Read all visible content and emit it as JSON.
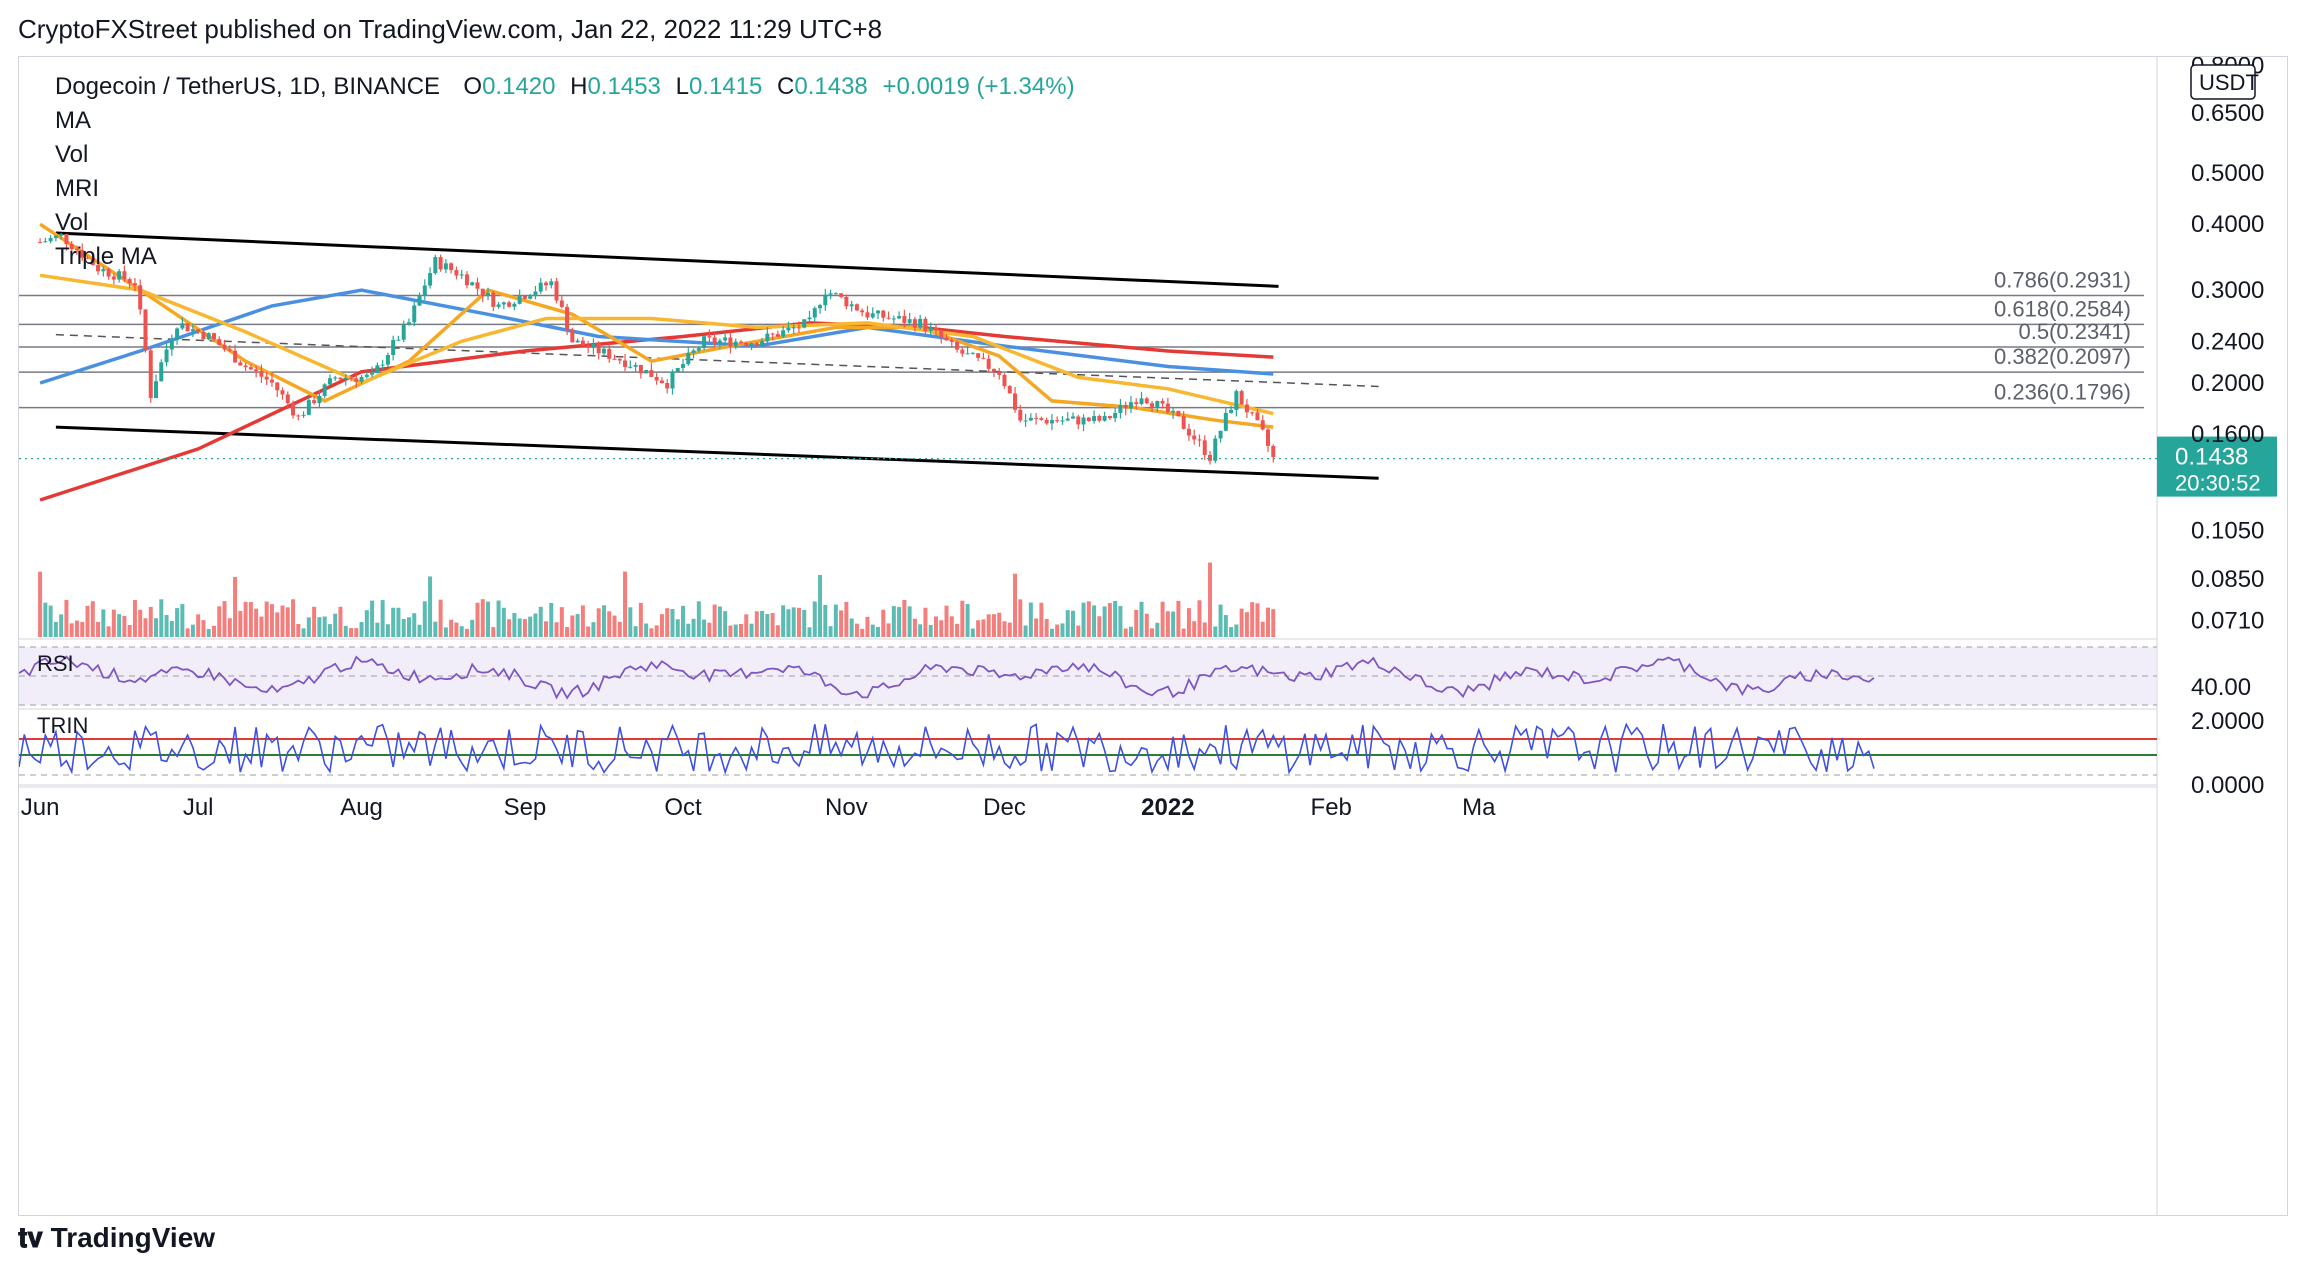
{
  "header": {
    "published": "CryptoFXStreet published on TradingView.com, Jan 22, 2022 11:29 UTC+8"
  },
  "legend": {
    "symbol": "Dogecoin / TetherUS, 1D, BINANCE",
    "o_label": "O",
    "o": "0.1420",
    "h_label": "H",
    "h": "0.1453",
    "l_label": "L",
    "l": "0.1415",
    "c_label": "C",
    "c": "0.1438",
    "change": "+0.0019 (+1.34%)",
    "indicators": [
      "MA",
      "Vol",
      "MRI",
      "Vol",
      "Triple MA"
    ]
  },
  "colors": {
    "up": "#26a69a",
    "down": "#ef5350",
    "ma_red": "#e53935",
    "ma_blue": "#4a90e2",
    "ma_orange": "#f5a623",
    "ma_yellow": "#f7b731",
    "channel": "#000000",
    "rsi": "#7e57c2",
    "trin": "#3f51e0"
  },
  "chart_data": {
    "type": "line",
    "main": {
      "currency": "USDT",
      "y_scale": "log",
      "y_ticks": [
        "0.8000",
        "0.6500",
        "0.5000",
        "0.4000",
        "0.3000",
        "0.2400",
        "0.2000",
        "0.1600",
        "0.1050",
        "0.0850",
        "0.0710"
      ],
      "y_tick_values": [
        0.8,
        0.65,
        0.5,
        0.4,
        0.3,
        0.24,
        0.2,
        0.16,
        0.105,
        0.085,
        0.071
      ],
      "last_price": "0.1438",
      "countdown": "20:30:52",
      "x_ticks": [
        "Jun",
        "Jul",
        "Aug",
        "Sep",
        "Oct",
        "Nov",
        "Dec",
        "2022",
        "Feb",
        "Ma"
      ],
      "x_tick_dates": [
        "2021-06-01",
        "2021-07-01",
        "2021-08-01",
        "2021-09-01",
        "2021-10-01",
        "2021-11-01",
        "2021-12-01",
        "2022-01-01",
        "2022-02-01",
        "2022-03-01"
      ],
      "fib_levels": [
        {
          "label": "0.786(0.2931)",
          "value": 0.2931
        },
        {
          "label": "0.618(0.2584)",
          "value": 0.2584
        },
        {
          "label": "0.5(0.2341)",
          "value": 0.2341
        },
        {
          "label": "0.382(0.2097)",
          "value": 0.2097
        },
        {
          "label": "0.236(0.1796)",
          "value": 0.1796
        }
      ],
      "price_path": [
        [
          "2021-06-01",
          0.37
        ],
        [
          "2021-06-05",
          0.38
        ],
        [
          "2021-06-12",
          0.33
        ],
        [
          "2021-06-19",
          0.31
        ],
        [
          "2021-06-22",
          0.19
        ],
        [
          "2021-06-27",
          0.26
        ],
        [
          "2021-07-03",
          0.245
        ],
        [
          "2021-07-10",
          0.215
        ],
        [
          "2021-07-15",
          0.2
        ],
        [
          "2021-07-20",
          0.172
        ],
        [
          "2021-07-27",
          0.205
        ],
        [
          "2021-08-03",
          0.205
        ],
        [
          "2021-08-10",
          0.26
        ],
        [
          "2021-08-15",
          0.34
        ],
        [
          "2021-08-20",
          0.32
        ],
        [
          "2021-08-27",
          0.28
        ],
        [
          "2021-09-06",
          0.31
        ],
        [
          "2021-09-10",
          0.24
        ],
        [
          "2021-09-20",
          0.22
        ],
        [
          "2021-09-28",
          0.2
        ],
        [
          "2021-10-05",
          0.24
        ],
        [
          "2021-10-15",
          0.24
        ],
        [
          "2021-10-25",
          0.26
        ],
        [
          "2021-10-28",
          0.3
        ],
        [
          "2021-11-05",
          0.27
        ],
        [
          "2021-11-15",
          0.26
        ],
        [
          "2021-11-22",
          0.23
        ],
        [
          "2021-11-30",
          0.21
        ],
        [
          "2021-12-04",
          0.17
        ],
        [
          "2021-12-12",
          0.17
        ],
        [
          "2021-12-20",
          0.17
        ],
        [
          "2021-12-27",
          0.19
        ],
        [
          "2022-01-03",
          0.17
        ],
        [
          "2022-01-09",
          0.145
        ],
        [
          "2022-01-14",
          0.19
        ],
        [
          "2022-01-19",
          0.16
        ],
        [
          "2022-01-21",
          0.1438
        ]
      ],
      "series": [
        {
          "color_key": "ma_red",
          "points": [
            [
              "2021-06-01",
              0.12
            ],
            [
              "2021-07-01",
              0.15
            ],
            [
              "2021-08-01",
              0.21
            ],
            [
              "2021-09-01",
              0.23
            ],
            [
              "2021-10-01",
              0.245
            ],
            [
              "2021-10-25",
              0.26
            ],
            [
              "2021-11-15",
              0.255
            ],
            [
              "2021-12-01",
              0.245
            ],
            [
              "2022-01-01",
              0.23
            ],
            [
              "2022-01-21",
              0.224
            ]
          ]
        },
        {
          "color_key": "ma_blue",
          "points": [
            [
              "2021-06-01",
              0.2
            ],
            [
              "2021-06-20",
              0.23
            ],
            [
              "2021-07-15",
              0.28
            ],
            [
              "2021-08-01",
              0.3
            ],
            [
              "2021-08-25",
              0.27
            ],
            [
              "2021-09-15",
              0.245
            ],
            [
              "2021-10-15",
              0.235
            ],
            [
              "2021-11-05",
              0.255
            ],
            [
              "2021-12-01",
              0.235
            ],
            [
              "2022-01-01",
              0.215
            ],
            [
              "2022-01-21",
              0.208
            ]
          ]
        },
        {
          "color_key": "ma_orange",
          "points": [
            [
              "2021-06-01",
              0.4
            ],
            [
              "2021-06-20",
              0.3
            ],
            [
              "2021-07-10",
              0.22
            ],
            [
              "2021-07-25",
              0.185
            ],
            [
              "2021-08-10",
              0.22
            ],
            [
              "2021-08-25",
              0.3
            ],
            [
              "2021-09-10",
              0.27
            ],
            [
              "2021-09-25",
              0.22
            ],
            [
              "2021-10-10",
              0.235
            ],
            [
              "2021-10-30",
              0.255
            ],
            [
              "2021-11-15",
              0.255
            ],
            [
              "2021-11-30",
              0.225
            ],
            [
              "2021-12-10",
              0.185
            ],
            [
              "2021-12-25",
              0.18
            ],
            [
              "2022-01-10",
              0.17
            ],
            [
              "2022-01-21",
              0.165
            ]
          ]
        },
        {
          "color_key": "ma_yellow",
          "points": [
            [
              "2021-06-01",
              0.32
            ],
            [
              "2021-06-20",
              0.3
            ],
            [
              "2021-07-10",
              0.25
            ],
            [
              "2021-08-01",
              0.2
            ],
            [
              "2021-08-20",
              0.24
            ],
            [
              "2021-09-05",
              0.265
            ],
            [
              "2021-09-25",
              0.265
            ],
            [
              "2021-10-15",
              0.255
            ],
            [
              "2021-11-05",
              0.26
            ],
            [
              "2021-11-25",
              0.245
            ],
            [
              "2021-12-15",
              0.205
            ],
            [
              "2022-01-01",
              0.195
            ],
            [
              "2022-01-21",
              0.175
            ]
          ]
        }
      ],
      "channel_upper": [
        [
          "2021-06-04",
          0.385
        ],
        [
          "2022-01-22",
          0.305
        ]
      ],
      "channel_lower": [
        [
          "2021-06-04",
          0.165
        ],
        [
          "2022-02-10",
          0.132
        ]
      ],
      "mid_dashed": [
        [
          "2021-06-04",
          0.247
        ],
        [
          "2022-02-10",
          0.197
        ]
      ]
    },
    "rsi": {
      "label": "RSI",
      "y_ticks": [
        "40.00"
      ],
      "y_tick_values": [
        40
      ],
      "range": [
        30,
        70
      ]
    },
    "trin": {
      "label": "TRIN",
      "y_ticks": [
        "2.0000",
        "0.0000"
      ],
      "y_tick_values": [
        2,
        0
      ]
    }
  },
  "footer": {
    "brand": "TradingView"
  }
}
